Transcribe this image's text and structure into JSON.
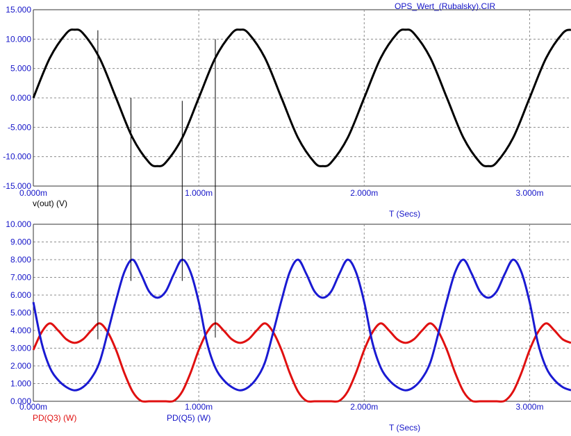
{
  "window": {
    "title": "OPS_Wert_(Rubalsky).CIR"
  },
  "colors": {
    "axis_text": "#1414c8",
    "grid": "#8c8c8c",
    "black": "#000000",
    "red": "#e01010",
    "blue": "#1a1ad2"
  },
  "chart_data": [
    {
      "type": "line",
      "title": "",
      "xlabel": "T (Secs)",
      "ylabel": "",
      "xlim": [
        0,
        3.25
      ],
      "ylim": [
        -15,
        15
      ],
      "x_ticks": [
        "0.000m",
        "1.000m",
        "2.000m",
        "3.000m"
      ],
      "x_tick_values": [
        0,
        1,
        2,
        3
      ],
      "y_ticks": [
        "15.000",
        "10.000",
        "5.000",
        "0.000",
        "-5.000",
        "-10.000",
        "-15.000"
      ],
      "y_tick_values": [
        15,
        10,
        5,
        0,
        -5,
        -10,
        -15
      ],
      "grid": true,
      "series": [
        {
          "name": "v(out) (V)",
          "color": "#000000",
          "x": [
            0,
            0.1,
            0.2,
            0.25,
            0.3,
            0.4,
            0.5,
            0.6,
            0.7,
            0.75,
            0.8,
            0.9,
            1.0,
            1.1,
            1.2,
            1.25,
            1.3,
            1.4,
            1.5,
            1.6,
            1.7,
            1.75,
            1.8,
            1.9,
            2.0,
            2.1,
            2.2,
            2.25,
            2.3,
            2.4,
            2.5,
            2.6,
            2.7,
            2.75,
            2.8,
            2.9,
            3.0,
            3.1,
            3.2,
            3.25
          ],
          "y": [
            0.0,
            6.8,
            11.0,
            11.6,
            11.0,
            6.8,
            0.0,
            -6.8,
            -11.0,
            -11.6,
            -11.0,
            -6.8,
            0.0,
            6.8,
            11.0,
            11.6,
            11.0,
            6.8,
            0.0,
            -6.8,
            -11.0,
            -11.6,
            -11.0,
            -6.8,
            0.0,
            6.8,
            11.0,
            11.6,
            11.0,
            6.8,
            0.0,
            -6.8,
            -11.0,
            -11.6,
            -11.0,
            -6.8,
            0.0,
            6.8,
            11.0,
            11.6
          ]
        }
      ]
    },
    {
      "type": "line",
      "title": "",
      "xlabel": "T (Secs)",
      "ylabel": "",
      "xlim": [
        0,
        3.25
      ],
      "ylim": [
        0,
        10
      ],
      "x_ticks": [
        "0.000m",
        "1.000m",
        "2.000m",
        "3.000m"
      ],
      "x_tick_values": [
        0,
        1,
        2,
        3
      ],
      "y_ticks": [
        "10.000",
        "9.000",
        "8.000",
        "7.000",
        "6.000",
        "5.000",
        "4.000",
        "3.000",
        "2.000",
        "1.000",
        "0.000"
      ],
      "y_tick_values": [
        10,
        9,
        8,
        7,
        6,
        5,
        4,
        3,
        2,
        1,
        0
      ],
      "grid": true,
      "series": [
        {
          "name": "PD(Q3) (W)",
          "color": "#e01010",
          "x": [
            0,
            0.05,
            0.1,
            0.15,
            0.2,
            0.25,
            0.3,
            0.35,
            0.4,
            0.45,
            0.5,
            0.55,
            0.6,
            0.65,
            0.7,
            0.75,
            0.8,
            0.85,
            0.9,
            0.95,
            1.0,
            1.05,
            1.1,
            1.15,
            1.2,
            1.25,
            1.3,
            1.35,
            1.4,
            1.45,
            1.5,
            1.55,
            1.6,
            1.65,
            1.7,
            1.75,
            1.8,
            1.85,
            1.9,
            1.95,
            2.0,
            2.05,
            2.1,
            2.15,
            2.2,
            2.25,
            2.3,
            2.35,
            2.4,
            2.45,
            2.5,
            2.55,
            2.6,
            2.65,
            2.7,
            2.75,
            2.8,
            2.85,
            2.9,
            2.95,
            3.0,
            3.05,
            3.1,
            3.15,
            3.2,
            3.25
          ],
          "y": [
            2.9,
            3.9,
            4.4,
            4.0,
            3.5,
            3.3,
            3.5,
            4.0,
            4.4,
            3.9,
            2.9,
            1.6,
            0.55,
            0.03,
            0.0,
            0.0,
            0.0,
            0.03,
            0.55,
            1.6,
            2.9,
            3.9,
            4.4,
            4.0,
            3.5,
            3.3,
            3.5,
            4.0,
            4.4,
            3.9,
            2.9,
            1.6,
            0.55,
            0.03,
            0.0,
            0.0,
            0.0,
            0.03,
            0.55,
            1.6,
            2.9,
            3.9,
            4.4,
            4.0,
            3.5,
            3.3,
            3.5,
            4.0,
            4.4,
            3.9,
            2.9,
            1.6,
            0.55,
            0.03,
            0.0,
            0.0,
            0.0,
            0.03,
            0.55,
            1.6,
            2.9,
            3.9,
            4.4,
            4.0,
            3.5,
            3.3
          ]
        },
        {
          "name": "PD(Q5) (W)",
          "color": "#1a1ad2",
          "x": [
            0,
            0.05,
            0.1,
            0.15,
            0.2,
            0.25,
            0.3,
            0.35,
            0.4,
            0.45,
            0.5,
            0.55,
            0.6,
            0.65,
            0.7,
            0.75,
            0.8,
            0.85,
            0.9,
            0.95,
            1.0,
            1.05,
            1.1,
            1.15,
            1.2,
            1.25,
            1.3,
            1.35,
            1.4,
            1.45,
            1.5,
            1.55,
            1.6,
            1.65,
            1.7,
            1.75,
            1.8,
            1.85,
            1.9,
            1.95,
            2.0,
            2.05,
            2.1,
            2.15,
            2.2,
            2.25,
            2.3,
            2.35,
            2.4,
            2.45,
            2.5,
            2.55,
            2.6,
            2.65,
            2.7,
            2.75,
            2.8,
            2.85,
            2.9,
            2.95,
            3.0,
            3.05,
            3.1,
            3.15,
            3.2,
            3.25
          ],
          "y": [
            5.6,
            3.3,
            1.9,
            1.2,
            0.8,
            0.62,
            0.8,
            1.3,
            2.2,
            3.9,
            5.7,
            7.3,
            8.0,
            7.2,
            6.2,
            5.85,
            6.2,
            7.2,
            8.0,
            7.3,
            5.6,
            3.3,
            1.9,
            1.2,
            0.8,
            0.62,
            0.8,
            1.3,
            2.2,
            3.9,
            5.7,
            7.3,
            8.0,
            7.2,
            6.2,
            5.85,
            6.2,
            7.2,
            8.0,
            7.3,
            5.6,
            3.3,
            1.9,
            1.2,
            0.8,
            0.62,
            0.8,
            1.3,
            2.2,
            3.9,
            5.7,
            7.3,
            8.0,
            7.2,
            6.2,
            5.85,
            6.2,
            7.2,
            8.0,
            7.3,
            5.6,
            3.3,
            1.9,
            1.2,
            0.8,
            0.62
          ]
        }
      ]
    }
  ],
  "marker_lines": [
    {
      "x": 0.39,
      "top_v": 11.5,
      "bottom_w": 3.5
    },
    {
      "x": 0.59,
      "top_v": 0.0,
      "bottom_w": 6.8
    },
    {
      "x": 0.9,
      "top_v": -0.5,
      "bottom_w": 6.8
    },
    {
      "x": 1.1,
      "top_v": 10.0,
      "bottom_w": 3.6
    }
  ]
}
